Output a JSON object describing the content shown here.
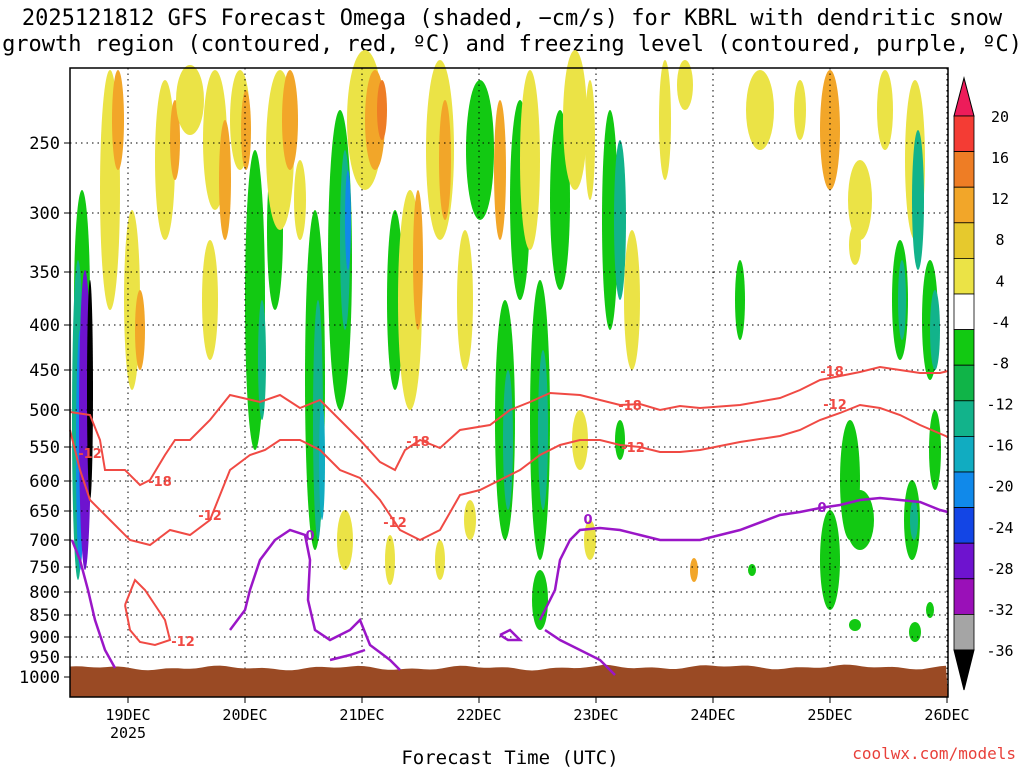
{
  "chart_data": {
    "type": "heatmap",
    "title_line1": "2025121812 GFS Forecast Omega (shaded, −cm/s) for KBRL with dendritic snow",
    "title_line2": "growth region (contoured, red, ºC) and freezing level (contoured, purple, ºC)",
    "xlabel": "Forecast Time (UTC)",
    "ylabel": "",
    "x_ticks": [
      "19DEC",
      "20DEC",
      "21DEC",
      "22DEC",
      "23DEC",
      "24DEC",
      "25DEC",
      "26DEC"
    ],
    "x_year_label": "2025",
    "y_ticks": [
      250,
      300,
      350,
      400,
      450,
      500,
      550,
      600,
      650,
      700,
      750,
      800,
      850,
      900,
      950,
      1000
    ],
    "y_range_hpa": [
      200,
      1000
    ],
    "x_range_hours": [
      0,
      180
    ],
    "colorbar_labels": [
      "20",
      "16",
      "12",
      "8",
      "4",
      "-4",
      "-8",
      "-12",
      "-16",
      "-20",
      "-24",
      "-28",
      "-32",
      "-36"
    ],
    "colorbar_colors": [
      "#ed1c5a",
      "#f43c34",
      "#ee7d25",
      "#f2a629",
      "#e6c92d",
      "#ebe346",
      "#ffffff",
      "#12c912",
      "#10b448",
      "#12b38b",
      "#11acc1",
      "#1089ea",
      "#1345e5",
      "#6e13cf",
      "#9a10b8",
      "#a5a5a5",
      "#000000"
    ],
    "contours": {
      "dgz_red": {
        "levels": [
          "-12",
          "-18"
        ],
        "color": "#f04a44"
      },
      "freezing_purple": {
        "levels": [
          "0"
        ],
        "color": "#9a16c7"
      }
    },
    "terrain_color": "#9a4a24",
    "credit": "coolwx.com/models"
  }
}
